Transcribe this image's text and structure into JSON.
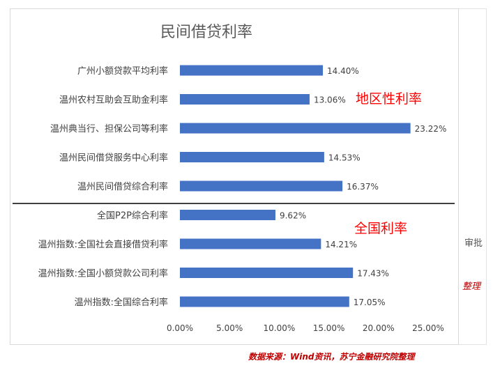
{
  "chart_data": {
    "type": "bar",
    "orientation": "horizontal",
    "title": "民间借贷利率",
    "xlim": [
      0,
      25
    ],
    "x_ticks": [
      "0.00%",
      "5.00%",
      "10.00%",
      "15.00%",
      "20.00%",
      "25.00%"
    ],
    "categories": [
      "广州小额贷款平均利率",
      "温州农村互助会互助金利率",
      "温州典当行、担保公司等利率",
      "温州民间借贷服务中心利率",
      "温州民间借贷综合利率",
      "全国P2P综合利率",
      "温州指数:全国社会直接借贷利率",
      "温州指数:全国小额贷款公司利率",
      "温州指数:全国综合利率"
    ],
    "values": [
      14.4,
      13.06,
      23.22,
      14.53,
      16.37,
      9.62,
      14.21,
      17.43,
      17.05
    ],
    "value_labels": [
      "14.40%",
      "13.06%",
      "23.22%",
      "14.53%",
      "16.37%",
      "9.62%",
      "14.21%",
      "17.43%",
      "17.05%"
    ],
    "bar_color": "#4472c4",
    "grid": false,
    "annotations": [
      "地区性利率",
      "全国利率"
    ]
  },
  "footer": {
    "source": "数据来源：Wind资讯，苏宁金融研究院整理"
  },
  "background": {
    "fragment1": "审批",
    "fragment2": "整理"
  }
}
